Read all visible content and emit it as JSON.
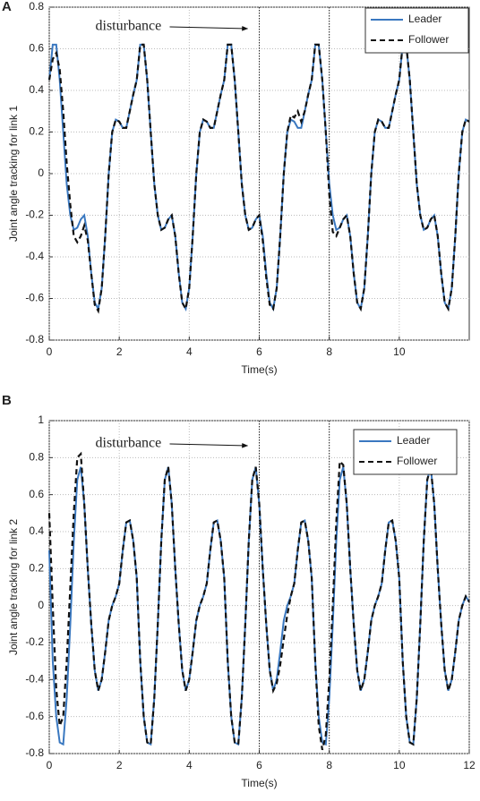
{
  "chart_data": [
    {
      "type": "line",
      "panel": "A",
      "xlabel": "Time(s)",
      "ylabel": "Joint angle tracking for link 1",
      "annotation": "disturbance",
      "disturbance_window": [
        6,
        8
      ],
      "xlim": [
        0,
        12
      ],
      "xticks": [
        0,
        2,
        4,
        6,
        8,
        10
      ],
      "ylim": [
        -0.8,
        0.8
      ],
      "yticks": [
        -0.8,
        -0.6,
        -0.4,
        -0.2,
        0,
        0.2,
        0.4,
        0.6,
        0.8
      ],
      "grid": true,
      "legend": "upper right",
      "x": [
        0,
        0.1,
        0.2,
        0.3,
        0.4,
        0.5,
        0.6,
        0.7,
        0.8,
        0.9,
        1,
        1.1,
        1.2,
        1.3,
        1.4,
        1.5,
        1.6,
        1.7,
        1.8,
        1.9,
        2,
        2.1,
        2.2,
        2.3,
        2.4,
        2.5,
        2.6,
        2.7,
        2.8,
        2.9,
        3,
        3.1,
        3.2,
        3.3,
        3.4,
        3.5,
        3.6,
        3.7,
        3.8,
        3.9,
        4,
        4.1,
        4.2,
        4.3,
        4.4,
        4.5,
        4.6,
        4.7,
        4.8,
        4.9,
        5,
        5.1,
        5.2,
        5.3,
        5.4,
        5.5,
        5.6,
        5.7,
        5.8,
        5.9,
        6,
        6.1,
        6.2,
        6.3,
        6.4,
        6.5,
        6.6,
        6.7,
        6.8,
        6.9,
        7,
        7.1,
        7.2,
        7.3,
        7.4,
        7.5,
        7.6,
        7.7,
        7.8,
        7.9,
        8,
        8.1,
        8.2,
        8.3,
        8.4,
        8.5,
        8.6,
        8.7,
        8.8,
        8.9,
        9,
        9.1,
        9.2,
        9.3,
        9.4,
        9.5,
        9.6,
        9.7,
        9.8,
        9.9,
        10,
        10.1,
        10.2,
        10.3,
        10.4,
        10.5,
        10.6,
        10.7,
        10.8,
        10.9,
        11,
        11.1,
        11.2,
        11.3,
        11.4,
        11.5,
        11.6,
        11.7,
        11.8,
        11.9,
        12
      ],
      "series": [
        {
          "name": "Leader",
          "color": "#3a78c0",
          "dash": false,
          "values": [
            0.45,
            0.62,
            0.62,
            0.45,
            0.2,
            -0.05,
            -0.2,
            -0.27,
            -0.26,
            -0.22,
            -0.2,
            -0.3,
            -0.48,
            -0.62,
            -0.65,
            -0.55,
            -0.3,
            0,
            0.2,
            0.26,
            0.25,
            0.22,
            0.22,
            0.3,
            0.38,
            0.45,
            0.62,
            0.62,
            0.45,
            0.2,
            -0.05,
            -0.2,
            -0.27,
            -0.26,
            -0.22,
            -0.2,
            -0.3,
            -0.48,
            -0.62,
            -0.65,
            -0.55,
            -0.3,
            0,
            0.2,
            0.26,
            0.25,
            0.22,
            0.22,
            0.3,
            0.38,
            0.45,
            0.62,
            0.62,
            0.45,
            0.2,
            -0.05,
            -0.2,
            -0.27,
            -0.26,
            -0.22,
            -0.2,
            -0.3,
            -0.48,
            -0.62,
            -0.65,
            -0.55,
            -0.3,
            0,
            0.2,
            0.26,
            0.25,
            0.22,
            0.22,
            0.3,
            0.38,
            0.45,
            0.62,
            0.62,
            0.45,
            0.2,
            -0.05,
            -0.2,
            -0.27,
            -0.26,
            -0.22,
            -0.2,
            -0.3,
            -0.48,
            -0.62,
            -0.65,
            -0.55,
            -0.3,
            0,
            0.2,
            0.26,
            0.25,
            0.22,
            0.22,
            0.3,
            0.38,
            0.45,
            0.62,
            0.62,
            0.45,
            0.2,
            -0.05,
            -0.2,
            -0.27,
            -0.26,
            -0.22,
            -0.2,
            -0.3,
            -0.48,
            -0.62,
            -0.65,
            -0.55,
            -0.3,
            0,
            0.2,
            0.26,
            0.25
          ]
        },
        {
          "name": "Follower",
          "color": "#111111",
          "dash": true,
          "values": [
            0.45,
            0.55,
            0.58,
            0.5,
            0.3,
            0.05,
            -0.15,
            -0.3,
            -0.33,
            -0.3,
            -0.25,
            -0.32,
            -0.48,
            -0.63,
            -0.66,
            -0.55,
            -0.3,
            0,
            0.2,
            0.26,
            0.25,
            0.22,
            0.22,
            0.3,
            0.38,
            0.45,
            0.62,
            0.62,
            0.45,
            0.2,
            -0.05,
            -0.2,
            -0.27,
            -0.26,
            -0.22,
            -0.2,
            -0.3,
            -0.48,
            -0.62,
            -0.65,
            -0.55,
            -0.3,
            0,
            0.2,
            0.26,
            0.25,
            0.22,
            0.22,
            0.3,
            0.38,
            0.45,
            0.62,
            0.62,
            0.45,
            0.2,
            -0.05,
            -0.2,
            -0.27,
            -0.26,
            -0.22,
            -0.2,
            -0.32,
            -0.5,
            -0.63,
            -0.65,
            -0.55,
            -0.3,
            0,
            0.2,
            0.28,
            0.27,
            0.3,
            0.25,
            0.3,
            0.38,
            0.45,
            0.62,
            0.62,
            0.45,
            0.2,
            -0.1,
            -0.28,
            -0.3,
            -0.26,
            -0.22,
            -0.2,
            -0.3,
            -0.48,
            -0.62,
            -0.65,
            -0.55,
            -0.3,
            0,
            0.2,
            0.26,
            0.25,
            0.22,
            0.22,
            0.3,
            0.38,
            0.45,
            0.62,
            0.62,
            0.45,
            0.2,
            -0.05,
            -0.2,
            -0.27,
            -0.26,
            -0.22,
            -0.2,
            -0.3,
            -0.48,
            -0.62,
            -0.65,
            -0.55,
            -0.3,
            0,
            0.2,
            0.26,
            0.25
          ]
        }
      ]
    },
    {
      "type": "line",
      "panel": "B",
      "xlabel": "Time(s)",
      "ylabel": "Joint angle tracking for link 2",
      "annotation": "disturbance",
      "disturbance_window": [
        6,
        8
      ],
      "xlim": [
        0,
        12
      ],
      "xticks": [
        0,
        2,
        4,
        6,
        8,
        10,
        12
      ],
      "ylim": [
        -0.8,
        1
      ],
      "yticks": [
        -0.8,
        -0.6,
        -0.4,
        -0.2,
        0,
        0.2,
        0.4,
        0.6,
        0.8,
        1
      ],
      "grid": true,
      "legend": "upper right",
      "x": [
        0,
        0.1,
        0.2,
        0.3,
        0.4,
        0.5,
        0.6,
        0.7,
        0.8,
        0.9,
        1,
        1.1,
        1.2,
        1.3,
        1.4,
        1.5,
        1.6,
        1.7,
        1.8,
        1.9,
        2,
        2.1,
        2.2,
        2.3,
        2.4,
        2.5,
        2.6,
        2.7,
        2.8,
        2.9,
        3,
        3.1,
        3.2,
        3.3,
        3.4,
        3.5,
        3.6,
        3.7,
        3.8,
        3.9,
        4,
        4.1,
        4.2,
        4.3,
        4.4,
        4.5,
        4.6,
        4.7,
        4.8,
        4.9,
        5,
        5.1,
        5.2,
        5.3,
        5.4,
        5.5,
        5.6,
        5.7,
        5.8,
        5.9,
        6,
        6.1,
        6.2,
        6.3,
        6.4,
        6.5,
        6.6,
        6.7,
        6.8,
        6.9,
        7,
        7.1,
        7.2,
        7.3,
        7.4,
        7.5,
        7.6,
        7.7,
        7.8,
        7.9,
        8,
        8.1,
        8.2,
        8.3,
        8.4,
        8.5,
        8.6,
        8.7,
        8.8,
        8.9,
        9,
        9.1,
        9.2,
        9.3,
        9.4,
        9.5,
        9.6,
        9.7,
        9.8,
        9.9,
        10,
        10.1,
        10.2,
        10.3,
        10.4,
        10.5,
        10.6,
        10.7,
        10.8,
        10.9,
        11,
        11.1,
        11.2,
        11.3,
        11.4,
        11.5,
        11.6,
        11.7,
        11.8,
        11.9,
        12
      ],
      "series": [
        {
          "name": "Leader",
          "color": "#3a78c0",
          "dash": false,
          "values": [
            0.3,
            -0.3,
            -0.6,
            -0.74,
            -0.75,
            -0.5,
            -0.1,
            0.35,
            0.68,
            0.75,
            0.55,
            0.2,
            -0.1,
            -0.35,
            -0.46,
            -0.4,
            -0.25,
            -0.08,
            0,
            0.05,
            0.12,
            0.3,
            0.45,
            0.46,
            0.35,
            0.15,
            -0.3,
            -0.6,
            -0.74,
            -0.75,
            -0.5,
            -0.1,
            0.35,
            0.68,
            0.75,
            0.55,
            0.2,
            -0.1,
            -0.35,
            -0.46,
            -0.4,
            -0.25,
            -0.08,
            0,
            0.05,
            0.12,
            0.3,
            0.45,
            0.46,
            0.35,
            0.15,
            -0.3,
            -0.6,
            -0.74,
            -0.75,
            -0.5,
            -0.1,
            0.35,
            0.68,
            0.75,
            0.55,
            0.2,
            -0.1,
            -0.35,
            -0.46,
            -0.4,
            -0.25,
            -0.08,
            0,
            0.05,
            0.12,
            0.3,
            0.45,
            0.46,
            0.35,
            0.15,
            -0.3,
            -0.6,
            -0.74,
            -0.75,
            -0.5,
            -0.1,
            0.35,
            0.68,
            0.75,
            0.55,
            0.2,
            -0.1,
            -0.35,
            -0.46,
            -0.4,
            -0.25,
            -0.08,
            0,
            0.05,
            0.12,
            0.3,
            0.45,
            0.46,
            0.35,
            0.15,
            -0.3,
            -0.6,
            -0.74,
            -0.75,
            -0.5,
            -0.1,
            0.35,
            0.68,
            0.75,
            0.55,
            0.2,
            -0.1,
            -0.35,
            -0.46,
            -0.4,
            -0.25,
            -0.08,
            0,
            0.05,
            0.02
          ]
        },
        {
          "name": "Follower",
          "color": "#111111",
          "dash": true,
          "values": [
            0.5,
            0,
            -0.45,
            -0.65,
            -0.6,
            -0.3,
            0.1,
            0.5,
            0.8,
            0.82,
            0.55,
            0.2,
            -0.1,
            -0.35,
            -0.46,
            -0.4,
            -0.25,
            -0.08,
            0,
            0.05,
            0.12,
            0.3,
            0.45,
            0.46,
            0.35,
            0.15,
            -0.3,
            -0.6,
            -0.74,
            -0.75,
            -0.5,
            -0.1,
            0.35,
            0.68,
            0.75,
            0.55,
            0.2,
            -0.1,
            -0.35,
            -0.46,
            -0.4,
            -0.25,
            -0.08,
            0,
            0.05,
            0.12,
            0.3,
            0.45,
            0.46,
            0.35,
            0.15,
            -0.3,
            -0.6,
            -0.74,
            -0.75,
            -0.5,
            -0.1,
            0.35,
            0.68,
            0.75,
            0.55,
            0.2,
            -0.1,
            -0.35,
            -0.46,
            -0.42,
            -0.32,
            -0.18,
            -0.05,
            0.05,
            0.12,
            0.3,
            0.45,
            0.46,
            0.35,
            0.15,
            -0.3,
            -0.65,
            -0.78,
            -0.7,
            -0.4,
            0,
            0.45,
            0.78,
            0.76,
            0.55,
            0.2,
            -0.1,
            -0.35,
            -0.46,
            -0.4,
            -0.25,
            -0.08,
            0,
            0.05,
            0.12,
            0.3,
            0.45,
            0.46,
            0.35,
            0.15,
            -0.3,
            -0.6,
            -0.74,
            -0.75,
            -0.5,
            -0.1,
            0.35,
            0.68,
            0.75,
            0.55,
            0.2,
            -0.1,
            -0.35,
            -0.46,
            -0.4,
            -0.25,
            -0.08,
            0,
            0.05,
            0.02
          ]
        }
      ]
    }
  ]
}
